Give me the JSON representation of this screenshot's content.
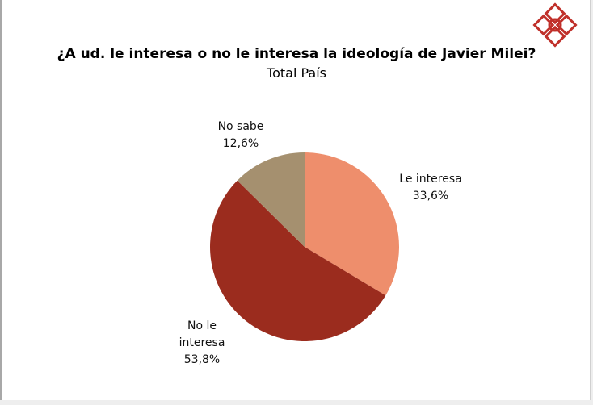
{
  "chart_data": {
    "type": "pie",
    "title": "¿A ud. le interesa o no le interesa la ideología de Javier Milei?",
    "subtitle": "Total País",
    "slices": [
      {
        "label": "Le interesa",
        "value": 33.6,
        "display": "33,6%",
        "color": "#EE8E6C"
      },
      {
        "label": "No le interesa",
        "value": 53.8,
        "display": "53,8%",
        "color": "#9B2C1E"
      },
      {
        "label": "No sabe",
        "value": 12.6,
        "display": "12,6%",
        "color": "#A5906F"
      }
    ],
    "start_angle": "top, clockwise"
  },
  "logo_color": "#C0302A"
}
